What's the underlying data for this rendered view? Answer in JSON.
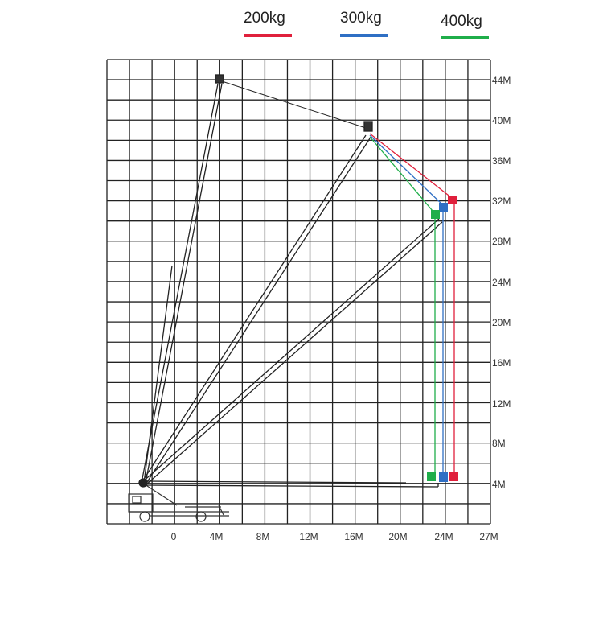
{
  "legend": [
    {
      "label": "200kg",
      "color": "#e0203c"
    },
    {
      "label": "300kg",
      "color": "#2f6fc4"
    },
    {
      "label": "400kg",
      "color": "#1fae4a"
    }
  ],
  "y_axis": {
    "ticks": [
      "44M",
      "40M",
      "36M",
      "32M",
      "28M",
      "24M",
      "20M",
      "16M",
      "12M",
      "8M",
      "4M"
    ]
  },
  "x_axis": {
    "ticks": [
      "0",
      "4M",
      "8M",
      "12M",
      "16M",
      "20M",
      "24M",
      "27M"
    ]
  }
}
